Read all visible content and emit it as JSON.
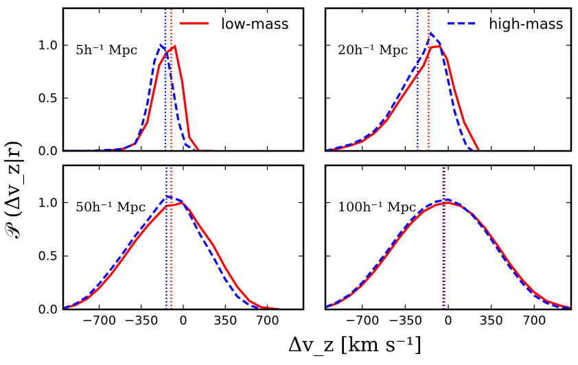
{
  "chart_data": {
    "type": "line",
    "xlabel": "Δv_z  [km s⁻¹]",
    "ylabel": "𝒫 (Δv_z|r)",
    "xlim": [
      -1000,
      1000
    ],
    "ylim": [
      0,
      1.35
    ],
    "xticks": [
      -700,
      -350,
      0,
      350,
      700
    ],
    "xtick_labels": [
      "−700",
      "−350",
      "0",
      "350",
      "700"
    ],
    "yticks": [
      0.0,
      0.5,
      1.0
    ],
    "ytick_labels": [
      "0.0",
      "0.5",
      "1.0"
    ],
    "legend": [
      {
        "name": "low-mass",
        "color": "#ff0000",
        "style": "solid",
        "panel": 0
      },
      {
        "name": "high-mass",
        "color": "#0000ff",
        "style": "dashed",
        "panel": 1
      }
    ],
    "panels": [
      {
        "label": "5h⁻¹ Mpc",
        "series": [
          {
            "name": "low-mass",
            "color": "#ff0000",
            "style": "solid",
            "x": [
              -1000,
              -900,
              -800,
              -700,
              -600,
              -500,
              -400,
              -300,
              -200,
              -140,
              -70,
              -10,
              50,
              130,
              250
            ],
            "y": [
              0,
              0,
              0,
              0,
              0.005,
              0.02,
              0.07,
              0.27,
              0.81,
              0.93,
              0.99,
              0.66,
              0.13,
              0,
              0
            ]
          },
          {
            "name": "high-mass",
            "color": "#0000ff",
            "style": "dashed",
            "x": [
              -1000,
              -900,
              -800,
              -700,
              -600,
              -500,
              -400,
              -350,
              -300,
              -240,
              -190,
              -140,
              -90,
              -40,
              20,
              100
            ],
            "y": [
              0,
              0,
              0,
              0.005,
              0.01,
              0.02,
              0.07,
              0.21,
              0.44,
              0.85,
              1.0,
              0.95,
              0.62,
              0.28,
              0.06,
              0
            ]
          },
          {
            "name": "low-mass mean",
            "color": "#ff0000",
            "style": "dotted",
            "x": [
              -100,
              -100
            ],
            "y": [
              0,
              1.35
            ]
          },
          {
            "name": "high-mass mean",
            "color": "#0000ff",
            "style": "dotted",
            "x": [
              -150,
              -150
            ],
            "y": [
              0,
              1.35
            ]
          }
        ]
      },
      {
        "label": "20h⁻¹ Mpc",
        "series": [
          {
            "name": "low-mass",
            "color": "#ff0000",
            "style": "solid",
            "x": [
              -1000,
              -900,
              -800,
              -700,
              -600,
              -500,
              -400,
              -300,
              -200,
              -140,
              -70,
              -10,
              50,
              130,
              250
            ],
            "y": [
              0,
              0.02,
              0.05,
              0.09,
              0.17,
              0.29,
              0.47,
              0.64,
              0.81,
              0.98,
              0.99,
              0.87,
              0.58,
              0.27,
              0
            ]
          },
          {
            "name": "high-mass",
            "color": "#0000ff",
            "style": "dashed",
            "x": [
              -1000,
              -900,
              -800,
              -700,
              -600,
              -500,
              -400,
              -300,
              -200,
              -140,
              -70,
              -10,
              50,
              100,
              150,
              200
            ],
            "y": [
              0,
              0.03,
              0.06,
              0.11,
              0.19,
              0.33,
              0.53,
              0.74,
              0.93,
              1.11,
              1.02,
              0.72,
              0.38,
              0.19,
              0.04,
              0
            ]
          },
          {
            "name": "low-mass mean",
            "color": "#ff0000",
            "style": "dotted",
            "x": [
              -160,
              -160
            ],
            "y": [
              0,
              1.35
            ]
          },
          {
            "name": "high-mass mean",
            "color": "#0000ff",
            "style": "dotted",
            "x": [
              -250,
              -250
            ],
            "y": [
              0,
              1.35
            ]
          }
        ]
      },
      {
        "label": "50h⁻¹ Mpc",
        "series": [
          {
            "name": "low-mass",
            "color": "#ff0000",
            "style": "solid",
            "x": [
              -1000,
              -900,
              -800,
              -700,
              -600,
              -500,
              -400,
              -300,
              -200,
              -140,
              -70,
              -10,
              50,
              130,
              250,
              350,
              450,
              550,
              650,
              800
            ],
            "y": [
              0.01,
              0.04,
              0.1,
              0.2,
              0.33,
              0.48,
              0.64,
              0.78,
              0.9,
              0.97,
              0.98,
              1.0,
              0.93,
              0.79,
              0.6,
              0.39,
              0.21,
              0.08,
              0.02,
              0
            ]
          },
          {
            "name": "high-mass",
            "color": "#0000ff",
            "style": "dashed",
            "x": [
              -1000,
              -900,
              -800,
              -700,
              -600,
              -500,
              -400,
              -300,
              -200,
              -140,
              -70,
              -10,
              50,
              130,
              250,
              350,
              450,
              550,
              650
            ],
            "y": [
              0.01,
              0.05,
              0.12,
              0.24,
              0.38,
              0.53,
              0.69,
              0.83,
              0.98,
              1.06,
              1.04,
              1.01,
              0.9,
              0.72,
              0.49,
              0.28,
              0.12,
              0.04,
              0
            ]
          },
          {
            "name": "low-mass mean",
            "color": "#ff0000",
            "style": "dotted",
            "x": [
              -100,
              -100
            ],
            "y": [
              0,
              1.35
            ]
          },
          {
            "name": "high-mass mean",
            "color": "#0000ff",
            "style": "dotted",
            "x": [
              -140,
              -140
            ],
            "y": [
              0,
              1.35
            ]
          }
        ]
      },
      {
        "label": "100h⁻¹ Mpc",
        "series": [
          {
            "name": "low-mass",
            "color": "#ff0000",
            "style": "solid",
            "x": [
              -1000,
              -900,
              -800,
              -700,
              -600,
              -500,
              -400,
              -300,
              -200,
              -100,
              0,
              100,
              200,
              300,
              400,
              500,
              600,
              700,
              800,
              900,
              1000
            ],
            "y": [
              0.02,
              0.06,
              0.13,
              0.23,
              0.36,
              0.51,
              0.67,
              0.81,
              0.92,
              0.98,
              1.0,
              0.97,
              0.89,
              0.76,
              0.6,
              0.43,
              0.28,
              0.16,
              0.08,
              0.04,
              0.01
            ]
          },
          {
            "name": "high-mass",
            "color": "#0000ff",
            "style": "dashed",
            "x": [
              -1000,
              -900,
              -800,
              -700,
              -600,
              -500,
              -400,
              -300,
              -200,
              -100,
              0,
              100,
              200,
              300,
              400,
              500,
              600,
              700,
              800,
              900,
              1000
            ],
            "y": [
              0.02,
              0.07,
              0.14,
              0.25,
              0.39,
              0.54,
              0.7,
              0.84,
              0.95,
              1.01,
              1.03,
              0.98,
              0.88,
              0.74,
              0.57,
              0.4,
              0.25,
              0.13,
              0.06,
              0.02,
              0.01
            ]
          },
          {
            "name": "low-mass mean",
            "color": "#ff0000",
            "style": "dotted",
            "x": [
              -30,
              -30
            ],
            "y": [
              0,
              1.35
            ]
          },
          {
            "name": "high-mass mean",
            "color": "#0000ff",
            "style": "dotted",
            "x": [
              -40,
              -40
            ],
            "y": [
              0,
              1.35
            ]
          }
        ]
      }
    ]
  }
}
